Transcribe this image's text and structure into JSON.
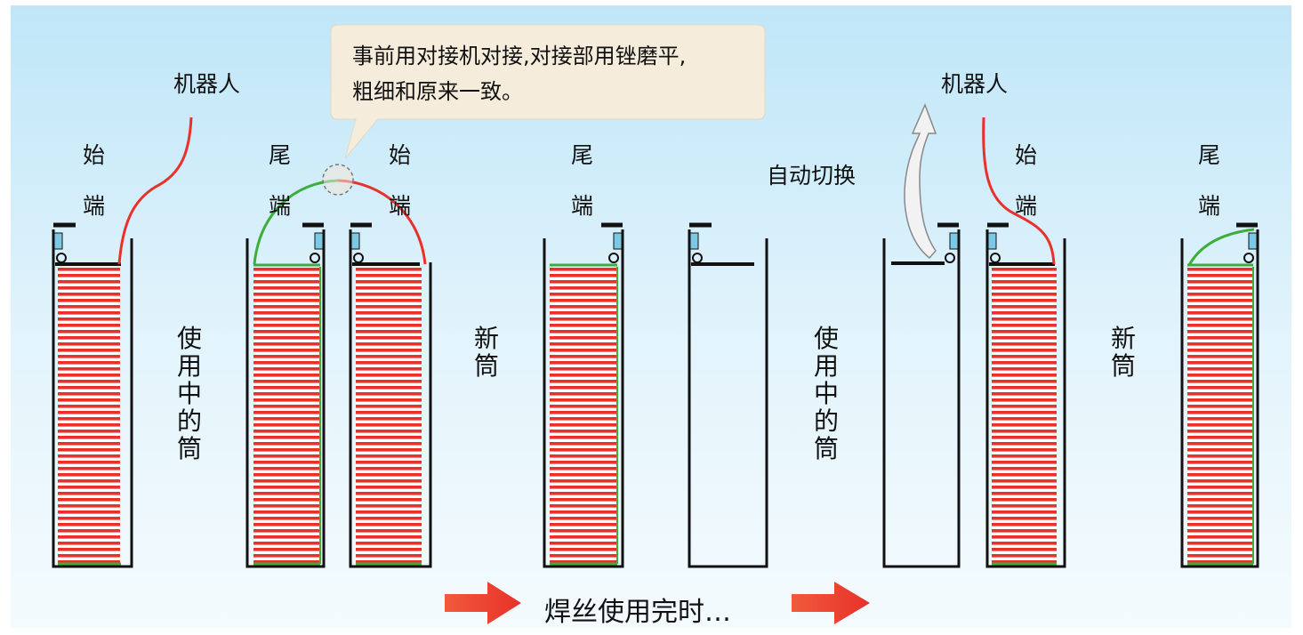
{
  "labels": {
    "robot_left": "机器人",
    "robot_right": "机器人",
    "start_char": "始",
    "end_char": "尾",
    "tip_char": "端",
    "in_use_drum": "使用中的筒",
    "new_drum": "新筒",
    "auto_switch": "自动切换",
    "caption": "焊丝使用完时…"
  },
  "callout": {
    "line1": "事前用对接机对接,对接部用锉磨平,",
    "line2": "粗细和原来一致。"
  },
  "colors": {
    "wire_red": "#e8312a",
    "wire_green": "#3dae3a",
    "sky_top": "#bfe6f8",
    "callout_bg": "#f5ecdc",
    "arrow": "#e8312a"
  }
}
